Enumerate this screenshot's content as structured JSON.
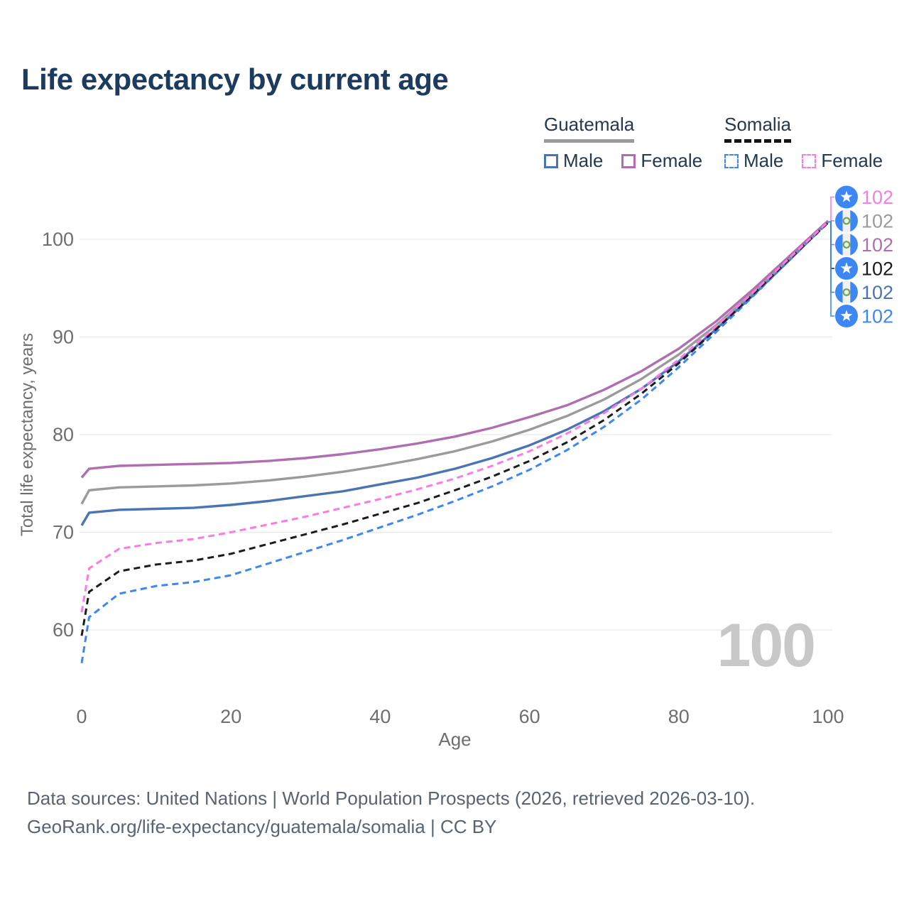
{
  "title": "Life expectancy by current age",
  "legend": {
    "groups": [
      {
        "label": "Guatemala",
        "line_style": "solid",
        "underline_color": "#9a9a9a",
        "items": [
          {
            "label": "Male",
            "color": "#4a74b4",
            "dash": false
          },
          {
            "label": "Female",
            "color": "#b06eb0",
            "dash": false
          }
        ]
      },
      {
        "label": "Somalia",
        "line_style": "dashed",
        "underline_color": "#141414",
        "items": [
          {
            "label": "Male",
            "color": "#3d87f5",
            "dash": true
          },
          {
            "label": "Female",
            "color": "#fb7be6",
            "dash": true
          }
        ]
      }
    ]
  },
  "watermark": "100",
  "footer": {
    "line1": "Data sources: United Nations | World Population Prospects (2026, retrieved 2026-03-10).",
    "line2": "GeoRank.org/life-expectancy/guatemala/somalia | CC BY"
  },
  "chart_data": {
    "type": "line",
    "title": "Life expectancy by current age",
    "xlabel": "Age",
    "ylabel": "Total life expectancy, years",
    "xlim": [
      0,
      100
    ],
    "ylim": [
      56,
      104
    ],
    "xticks": [
      0,
      20,
      40,
      60,
      80,
      100
    ],
    "yticks": [
      60,
      70,
      80,
      90,
      100
    ],
    "grid": true,
    "legend_position": "top-right",
    "ages": [
      0,
      1,
      5,
      10,
      15,
      20,
      25,
      30,
      35,
      40,
      45,
      50,
      55,
      60,
      65,
      70,
      75,
      80,
      85,
      90,
      95,
      100
    ],
    "series": [
      {
        "id": "guatemala-male",
        "name": "Guatemala Male",
        "country": "Guatemala",
        "sex": "Male",
        "color": "#4a74b4",
        "dash": false,
        "values": [
          70.7,
          72.0,
          72.3,
          72.4,
          72.5,
          72.8,
          73.2,
          73.7,
          74.2,
          74.9,
          75.6,
          76.5,
          77.6,
          78.9,
          80.5,
          82.4,
          84.7,
          87.5,
          90.8,
          94.3,
          98.0,
          101.8
        ]
      },
      {
        "id": "guatemala-both",
        "name": "Guatemala",
        "country": "Guatemala",
        "sex": "Both",
        "color": "#9b9b9b",
        "dash": false,
        "values": [
          72.9,
          74.3,
          74.6,
          74.7,
          74.8,
          75.0,
          75.3,
          75.7,
          76.2,
          76.8,
          77.5,
          78.3,
          79.3,
          80.5,
          81.9,
          83.6,
          85.7,
          88.2,
          91.2,
          94.6,
          98.2,
          101.8
        ]
      },
      {
        "id": "guatemala-female",
        "name": "Guatemala Female",
        "country": "Guatemala",
        "sex": "Female",
        "color": "#b06eb0",
        "dash": false,
        "values": [
          75.6,
          76.5,
          76.8,
          76.9,
          77.0,
          77.1,
          77.3,
          77.6,
          78.0,
          78.5,
          79.1,
          79.8,
          80.7,
          81.8,
          83.0,
          84.6,
          86.5,
          88.8,
          91.6,
          94.9,
          98.4,
          101.9
        ]
      },
      {
        "id": "somalia-male",
        "name": "Somalia Male",
        "country": "Somalia",
        "sex": "Male",
        "color": "#3d87f5",
        "dash": true,
        "values": [
          56.6,
          61.3,
          63.7,
          64.5,
          64.9,
          65.6,
          66.8,
          68.0,
          69.2,
          70.5,
          71.8,
          73.2,
          74.7,
          76.4,
          78.4,
          80.8,
          83.6,
          86.9,
          90.5,
          94.2,
          98.0,
          101.7
        ]
      },
      {
        "id": "somalia-both",
        "name": "Somalia",
        "country": "Somalia",
        "sex": "Both",
        "color": "#1c1c1c",
        "dash": true,
        "values": [
          59.4,
          63.9,
          66.0,
          66.7,
          67.1,
          67.8,
          68.8,
          69.8,
          70.8,
          71.9,
          73.0,
          74.3,
          75.7,
          77.3,
          79.2,
          81.5,
          84.2,
          87.3,
          90.8,
          94.4,
          98.1,
          101.7
        ]
      },
      {
        "id": "somalia-female",
        "name": "Somalia Female",
        "country": "Somalia",
        "sex": "Female",
        "color": "#fb7be6",
        "dash": true,
        "values": [
          61.8,
          66.3,
          68.3,
          68.9,
          69.3,
          70.0,
          70.8,
          71.6,
          72.5,
          73.4,
          74.4,
          75.5,
          76.8,
          78.3,
          80.1,
          82.2,
          84.7,
          87.7,
          91.1,
          94.6,
          98.2,
          101.8
        ]
      }
    ],
    "end_labels": [
      {
        "series": "somalia-female",
        "flag": "somalia",
        "text": "102"
      },
      {
        "series": "guatemala-both",
        "flag": "guatemala",
        "text": "102"
      },
      {
        "series": "guatemala-female",
        "flag": "guatemala",
        "text": "102"
      },
      {
        "series": "somalia-both",
        "flag": "somalia",
        "text": "102"
      },
      {
        "series": "guatemala-male",
        "flag": "guatemala",
        "text": "102"
      },
      {
        "series": "somalia-male",
        "flag": "somalia",
        "text": "102"
      }
    ]
  }
}
